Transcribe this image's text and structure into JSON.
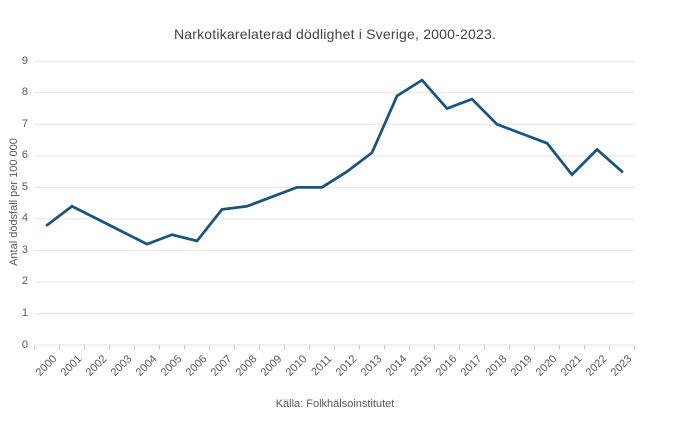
{
  "chart_data": {
    "type": "line",
    "title": "Narkotikarelaterad dödlighet i Sverige, 2000-2023.",
    "xlabel": "",
    "ylabel": "Antal dödsfall per 100 000",
    "source": "Källa: Folkhälsoinstitutet",
    "categories": [
      "2000",
      "2001",
      "2002",
      "2003",
      "2004",
      "2005",
      "2006",
      "2007",
      "2008",
      "2009",
      "2010",
      "2011",
      "2012",
      "2013",
      "2014",
      "2015",
      "2016",
      "2017",
      "2018",
      "2019",
      "2020",
      "2021",
      "2022",
      "2023"
    ],
    "values": [
      3.8,
      4.4,
      4.0,
      3.6,
      3.2,
      3.5,
      3.3,
      4.3,
      4.4,
      4.7,
      5.0,
      5.0,
      5.5,
      6.1,
      7.9,
      8.4,
      7.5,
      7.8,
      7.0,
      6.7,
      6.4,
      5.4,
      6.2,
      5.5
    ],
    "ylim": [
      0,
      9
    ],
    "yticks": [
      0,
      1,
      2,
      3,
      4,
      5,
      6,
      7,
      8,
      9
    ],
    "grid": true,
    "legend": false,
    "line_color": "#17557d"
  }
}
